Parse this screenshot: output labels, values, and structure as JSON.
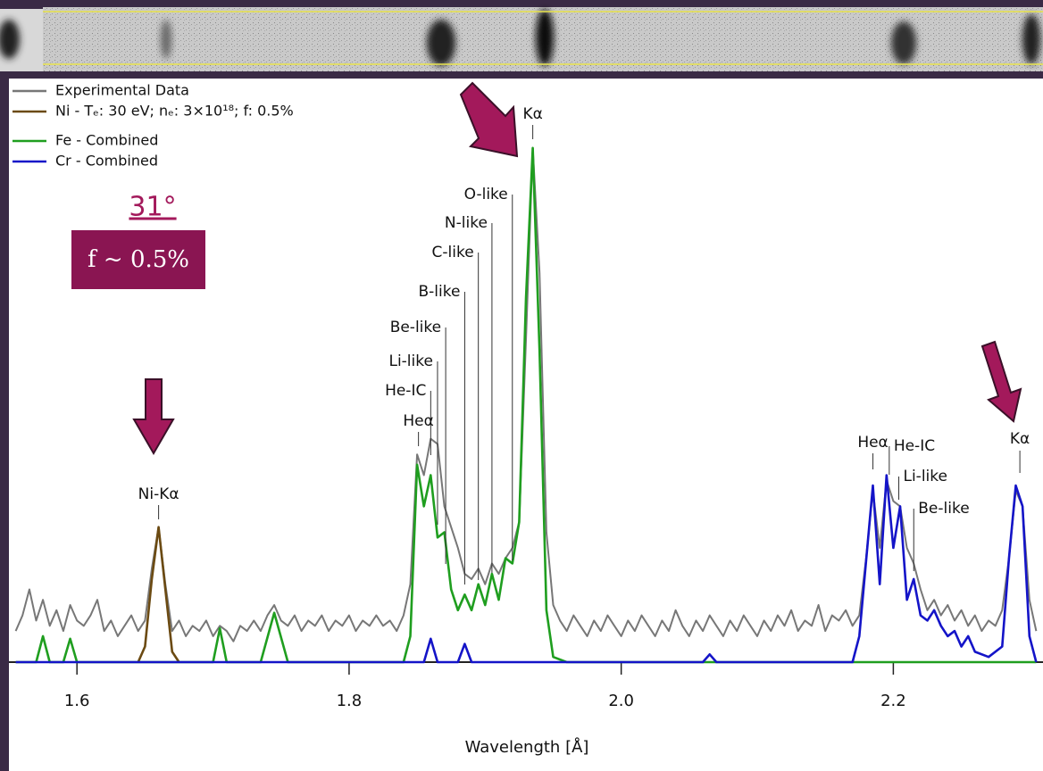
{
  "chart_data": {
    "type": "line",
    "xlabel": "Wavelength [Å]",
    "xlim": [
      1.55,
      2.31
    ],
    "ylim": [
      0,
      1
    ],
    "xticks": [
      1.6,
      1.8,
      {
        "value": 2,
        "label": "2.0"
      },
      2.2
    ],
    "series": [
      {
        "name": "Experimental Data",
        "color": "#777777",
        "x": [
          1.555,
          1.56,
          1.565,
          1.57,
          1.575,
          1.58,
          1.585,
          1.59,
          1.595,
          1.6,
          1.605,
          1.61,
          1.615,
          1.62,
          1.625,
          1.63,
          1.635,
          1.64,
          1.645,
          1.65,
          1.655,
          1.66,
          1.665,
          1.67,
          1.675,
          1.68,
          1.685,
          1.69,
          1.695,
          1.7,
          1.705,
          1.71,
          1.715,
          1.72,
          1.725,
          1.73,
          1.735,
          1.74,
          1.745,
          1.75,
          1.755,
          1.76,
          1.765,
          1.77,
          1.775,
          1.78,
          1.785,
          1.79,
          1.795,
          1.8,
          1.805,
          1.81,
          1.815,
          1.82,
          1.825,
          1.83,
          1.835,
          1.84,
          1.845,
          1.85,
          1.855,
          1.86,
          1.865,
          1.87,
          1.875,
          1.88,
          1.885,
          1.89,
          1.895,
          1.9,
          1.905,
          1.91,
          1.915,
          1.92,
          1.925,
          1.93,
          1.935,
          1.94,
          1.945,
          1.95,
          1.955,
          1.96,
          1.965,
          1.97,
          1.975,
          1.98,
          1.985,
          1.99,
          1.995,
          2.0,
          2.005,
          2.01,
          2.015,
          2.02,
          2.025,
          2.03,
          2.035,
          2.04,
          2.045,
          2.05,
          2.055,
          2.06,
          2.065,
          2.07,
          2.075,
          2.08,
          2.085,
          2.09,
          2.095,
          2.1,
          2.105,
          2.11,
          2.115,
          2.12,
          2.125,
          2.13,
          2.135,
          2.14,
          2.145,
          2.15,
          2.155,
          2.16,
          2.165,
          2.17,
          2.175,
          2.18,
          2.185,
          2.19,
          2.195,
          2.2,
          2.205,
          2.21,
          2.215,
          2.22,
          2.225,
          2.23,
          2.235,
          2.24,
          2.245,
          2.25,
          2.255,
          2.26,
          2.265,
          2.27,
          2.275,
          2.28,
          2.285,
          2.29,
          2.295,
          2.3,
          2.305
        ],
        "values": [
          0.06,
          0.09,
          0.14,
          0.08,
          0.12,
          0.07,
          0.1,
          0.06,
          0.11,
          0.08,
          0.07,
          0.09,
          0.12,
          0.06,
          0.08,
          0.05,
          0.07,
          0.09,
          0.06,
          0.08,
          0.18,
          0.26,
          0.15,
          0.06,
          0.08,
          0.05,
          0.07,
          0.06,
          0.08,
          0.05,
          0.07,
          0.06,
          0.04,
          0.07,
          0.06,
          0.08,
          0.06,
          0.09,
          0.11,
          0.08,
          0.07,
          0.09,
          0.06,
          0.08,
          0.07,
          0.09,
          0.06,
          0.08,
          0.07,
          0.09,
          0.06,
          0.08,
          0.07,
          0.09,
          0.07,
          0.08,
          0.06,
          0.09,
          0.15,
          0.4,
          0.36,
          0.43,
          0.42,
          0.3,
          0.26,
          0.22,
          0.17,
          0.16,
          0.18,
          0.15,
          0.19,
          0.17,
          0.2,
          0.22,
          0.27,
          0.62,
          0.99,
          0.75,
          0.25,
          0.11,
          0.08,
          0.06,
          0.09,
          0.07,
          0.05,
          0.08,
          0.06,
          0.09,
          0.07,
          0.05,
          0.08,
          0.06,
          0.09,
          0.07,
          0.05,
          0.08,
          0.06,
          0.1,
          0.07,
          0.05,
          0.08,
          0.06,
          0.09,
          0.07,
          0.05,
          0.08,
          0.06,
          0.09,
          0.07,
          0.05,
          0.08,
          0.06,
          0.09,
          0.07,
          0.1,
          0.06,
          0.08,
          0.07,
          0.11,
          0.06,
          0.09,
          0.08,
          0.1,
          0.07,
          0.09,
          0.2,
          0.33,
          0.22,
          0.35,
          0.31,
          0.3,
          0.22,
          0.19,
          0.14,
          0.1,
          0.12,
          0.09,
          0.11,
          0.08,
          0.1,
          0.07,
          0.09,
          0.06,
          0.08,
          0.07,
          0.1,
          0.2,
          0.33,
          0.3,
          0.12,
          0.06
        ]
      },
      {
        "name": "Ni - Tₑ: 30 eV; nₑ: 3×10¹⁸; f: 0.5%",
        "color": "#6b4a12",
        "x": [
          1.645,
          1.65,
          1.655,
          1.66,
          1.665,
          1.67,
          1.675
        ],
        "values": [
          0,
          0.03,
          0.16,
          0.26,
          0.14,
          0.02,
          0
        ]
      },
      {
        "name": "Fe - Combined",
        "color": "#1f9e1f",
        "x": [
          1.555,
          1.57,
          1.575,
          1.58,
          1.59,
          1.595,
          1.6,
          1.7,
          1.705,
          1.71,
          1.735,
          1.745,
          1.755,
          1.84,
          1.845,
          1.85,
          1.855,
          1.86,
          1.865,
          1.87,
          1.875,
          1.88,
          1.885,
          1.89,
          1.895,
          1.9,
          1.905,
          1.91,
          1.915,
          1.92,
          1.925,
          1.93,
          1.935,
          1.94,
          1.945,
          1.95,
          1.96,
          2.305
        ],
        "values": [
          0,
          0,
          0.05,
          0,
          0,
          0.045,
          0,
          0,
          0.065,
          0,
          0,
          0.095,
          0,
          0,
          0.05,
          0.38,
          0.3,
          0.36,
          0.24,
          0.25,
          0.14,
          0.1,
          0.13,
          0.1,
          0.15,
          0.11,
          0.17,
          0.12,
          0.2,
          0.19,
          0.27,
          0.7,
          0.99,
          0.6,
          0.1,
          0.01,
          0,
          0
        ]
      },
      {
        "name": "Cr - Combined",
        "color": "#1414c8",
        "x": [
          1.555,
          1.855,
          1.86,
          1.865,
          1.88,
          1.885,
          1.89,
          2.06,
          2.065,
          2.07,
          2.17,
          2.175,
          2.185,
          2.19,
          2.195,
          2.2,
          2.205,
          2.21,
          2.215,
          2.22,
          2.225,
          2.23,
          2.235,
          2.24,
          2.245,
          2.25,
          2.255,
          2.26,
          2.27,
          2.28,
          2.285,
          2.29,
          2.295,
          2.3,
          2.305
        ],
        "values": [
          0,
          0,
          0.045,
          0,
          0,
          0.035,
          0,
          0,
          0.015,
          0,
          0,
          0.05,
          0.34,
          0.15,
          0.36,
          0.22,
          0.3,
          0.12,
          0.16,
          0.09,
          0.08,
          0.1,
          0.07,
          0.05,
          0.06,
          0.03,
          0.05,
          0.02,
          0.01,
          0.03,
          0.2,
          0.34,
          0.3,
          0.05,
          0
        ]
      }
    ],
    "annotations": [
      {
        "text": "Kα",
        "x": 1.935
      },
      {
        "text": "O-like",
        "x": 1.92
      },
      {
        "text": "N-like",
        "x": 1.905
      },
      {
        "text": "C-like",
        "x": 1.895
      },
      {
        "text": "B-like",
        "x": 1.885
      },
      {
        "text": "Be-like",
        "x": 1.871
      },
      {
        "text": "Li-like",
        "x": 1.865
      },
      {
        "text": "He-IC",
        "x": 1.86
      },
      {
        "text": "Heα",
        "x": 1.851
      },
      {
        "text": "Ni-Kα",
        "x": 1.66
      },
      {
        "text": "Heα",
        "x": 2.185
      },
      {
        "text": "He-IC",
        "x": 2.197
      },
      {
        "text": "Li-like",
        "x": 2.204
      },
      {
        "text": "Be-like",
        "x": 2.215
      },
      {
        "text": "Kα",
        "x": 2.293
      }
    ],
    "angle": "31°",
    "fraction": "f ~ 0.5%"
  }
}
